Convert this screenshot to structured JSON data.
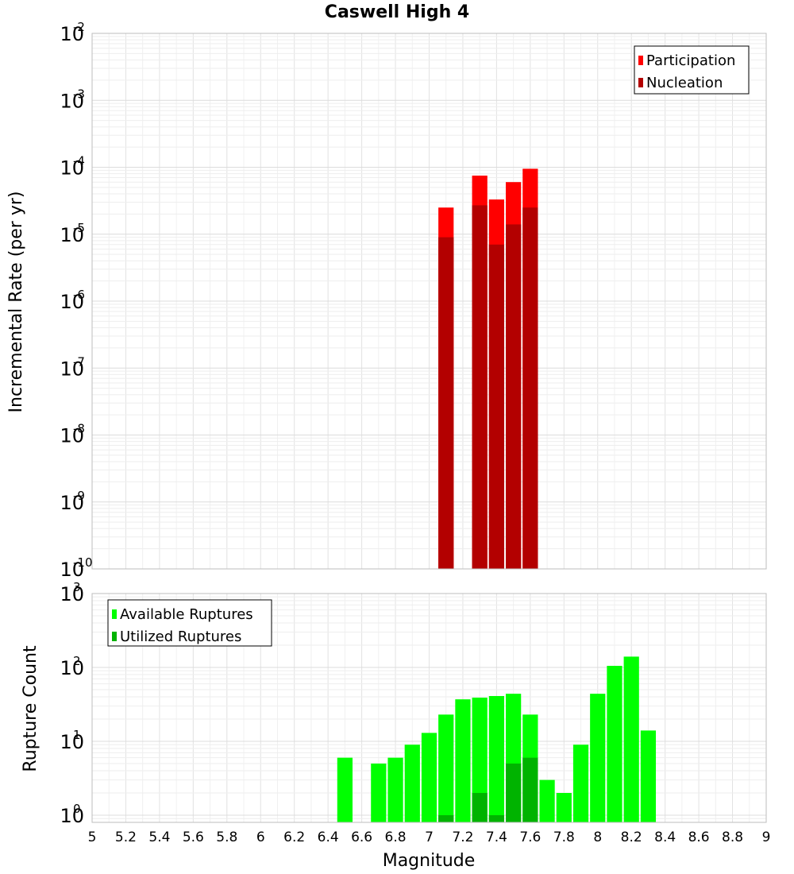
{
  "chart_data": [
    {
      "type": "bar",
      "title": "Caswell High 4",
      "xlabel": "",
      "ylabel": "Incremental Rate (per yr)",
      "y_scale": "log",
      "ylim": [
        1e-10,
        0.01
      ],
      "xlim": [
        5,
        9
      ],
      "bin_width": 0.1,
      "grid": true,
      "legend_position": "top-right",
      "y_ticks": [
        {
          "base": "10",
          "exp": "-10",
          "value": 1e-10
        },
        {
          "base": "10",
          "exp": "-9",
          "value": 1e-09
        },
        {
          "base": "10",
          "exp": "-8",
          "value": 1e-08
        },
        {
          "base": "10",
          "exp": "-7",
          "value": 1e-07
        },
        {
          "base": "10",
          "exp": "-6",
          "value": 1e-06
        },
        {
          "base": "10",
          "exp": "-5",
          "value": 1e-05
        },
        {
          "base": "10",
          "exp": "-4",
          "value": 0.0001
        },
        {
          "base": "10",
          "exp": "-3",
          "value": 0.001
        },
        {
          "base": "10",
          "exp": "-2",
          "value": 0.01
        }
      ],
      "series": [
        {
          "name": "Participation",
          "color": "#ff0000",
          "x": [
            7.1,
            7.3,
            7.4,
            7.5,
            7.6
          ],
          "values": [
            2.5e-05,
            7.5e-05,
            3.3e-05,
            6e-05,
            9.5e-05
          ]
        },
        {
          "name": "Nucleation",
          "color": "#b30000",
          "x": [
            7.1,
            7.3,
            7.4,
            7.5,
            7.6
          ],
          "values": [
            9e-06,
            2.7e-05,
            7e-06,
            1.4e-05,
            2.5e-05
          ]
        }
      ]
    },
    {
      "type": "bar",
      "xlabel": "Magnitude",
      "ylabel": "Rupture Count",
      "y_scale": "log",
      "ylim": [
        0.8,
        1000
      ],
      "xlim": [
        5,
        9
      ],
      "bin_width": 0.1,
      "grid": true,
      "legend_position": "top-left",
      "x_ticks": [
        "5",
        "5.2",
        "5.4",
        "5.6",
        "5.8",
        "6",
        "6.2",
        "6.4",
        "6.6",
        "6.8",
        "7",
        "7.2",
        "7.4",
        "7.6",
        "7.8",
        "8",
        "8.2",
        "8.4",
        "8.6",
        "8.8",
        "9"
      ],
      "y_ticks": [
        {
          "base": "10",
          "exp": "0",
          "value": 1
        },
        {
          "base": "10",
          "exp": "1",
          "value": 10
        },
        {
          "base": "10",
          "exp": "2",
          "value": 100
        },
        {
          "base": "10",
          "exp": "3",
          "value": 1000
        }
      ],
      "series": [
        {
          "name": "Available Ruptures",
          "color": "#00ff00",
          "x": [
            6.5,
            6.7,
            6.8,
            6.9,
            7.0,
            7.1,
            7.2,
            7.3,
            7.4,
            7.5,
            7.6,
            7.7,
            7.8,
            7.9,
            8.0,
            8.1,
            8.2,
            8.3
          ],
          "values": [
            6,
            5,
            6,
            9,
            13,
            23,
            37,
            39,
            41,
            44,
            23,
            3,
            2,
            9,
            44,
            105,
            140,
            14
          ]
        },
        {
          "name": "Utilized Ruptures",
          "color": "#00b300",
          "x": [
            7.1,
            7.3,
            7.4,
            7.5,
            7.6
          ],
          "values": [
            1,
            2,
            1,
            5,
            6
          ]
        }
      ]
    }
  ]
}
